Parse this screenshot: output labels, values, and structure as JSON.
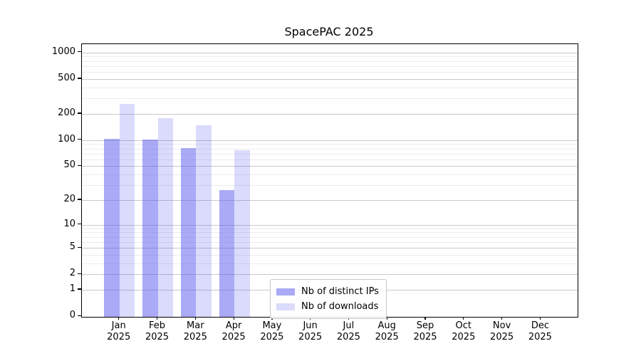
{
  "title": "SpacePAC 2025",
  "chart_data": {
    "type": "bar",
    "title": "SpacePAC 2025",
    "x": {
      "months": [
        "Jan",
        "Feb",
        "Mar",
        "Apr",
        "May",
        "Jun",
        "Jul",
        "Aug",
        "Sep",
        "Oct",
        "Nov",
        "Dec"
      ],
      "year": "2025"
    },
    "series": [
      {
        "name": "Nb of distinct IPs",
        "key": "distinct-ips",
        "color": "rgba(85,85,238,0.50)",
        "values": [
          104,
          102,
          81,
          26,
          0,
          0,
          0,
          0,
          0,
          0,
          0,
          0
        ]
      },
      {
        "name": "Nb of downloads",
        "key": "downloads",
        "color": "rgba(85,85,238,0.21)",
        "values": [
          260,
          178,
          148,
          76,
          0,
          0,
          0,
          0,
          0,
          0,
          0,
          0
        ]
      }
    ],
    "yscale": "symlog (pixel position proportional to log10(value+1))",
    "ylim": [
      0,
      1270
    ],
    "y_major_ticks": [
      0,
      1,
      2,
      5,
      10,
      20,
      50,
      100,
      200,
      500,
      1000
    ],
    "y_minor_ticks": [
      3,
      4,
      6,
      7,
      8,
      9,
      30,
      40,
      60,
      70,
      80,
      90,
      300,
      400,
      600,
      700,
      800,
      900
    ],
    "grid": true,
    "legend_position": "inside plot, lower center-left"
  },
  "colors": {
    "bar_distinct_ips_rendered": "#aaaaf3",
    "bar_downloads_rendered": "#dbdbf9",
    "grid_major": "#c9c9c9",
    "grid_minor": "#ececec",
    "axis_frame": "#000000",
    "legend_border": "#c8c8c8",
    "background": "#ffffff"
  }
}
